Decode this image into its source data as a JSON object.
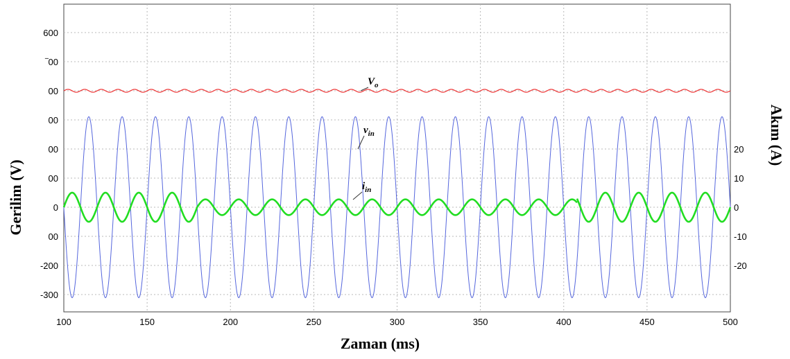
{
  "chart_data": {
    "type": "line",
    "xlabel": "Zaman  (ms)",
    "ylabel_left": "Gerilim (V)",
    "ylabel_right": "Akım (A)",
    "x_ticks": [
      "100",
      "150",
      "200",
      "250",
      "300",
      "350",
      "400",
      "450",
      "500"
    ],
    "y_ticks_left": [
      "600",
      "‾00",
      "00",
      "00",
      "00",
      "00",
      "0",
      "00",
      "-200",
      "-300"
    ],
    "y_ticks_right": [
      "20",
      "10",
      "0",
      "-10",
      "-20"
    ],
    "xlim": [
      100,
      500
    ],
    "grid": true,
    "series": [
      {
        "key": "vo",
        "label": "V",
        "label_sub": "o",
        "color": "#ee3333",
        "kind": "dc_ripple",
        "mean": 400,
        "ripple_amplitude": 5,
        "ripple_period_ms": 10
      },
      {
        "key": "vin",
        "label": "v",
        "label_sub": "in",
        "color": "#5566dd",
        "kind": "sine",
        "amplitude": 311,
        "period_ms": 20,
        "phase_ms_at_peak": 115
      },
      {
        "key": "iin",
        "label": "i",
        "label_sub": "in",
        "color": "#22dd22",
        "kind": "sine_segments",
        "period_ms": 20,
        "segments": [
          {
            "x_start": 100,
            "x_end": 180,
            "amplitude": 5
          },
          {
            "x_start": 180,
            "x_end": 408,
            "amplitude": 2.7
          },
          {
            "x_start": 408,
            "x_end": 500,
            "amplitude": 5
          }
        ]
      }
    ]
  }
}
